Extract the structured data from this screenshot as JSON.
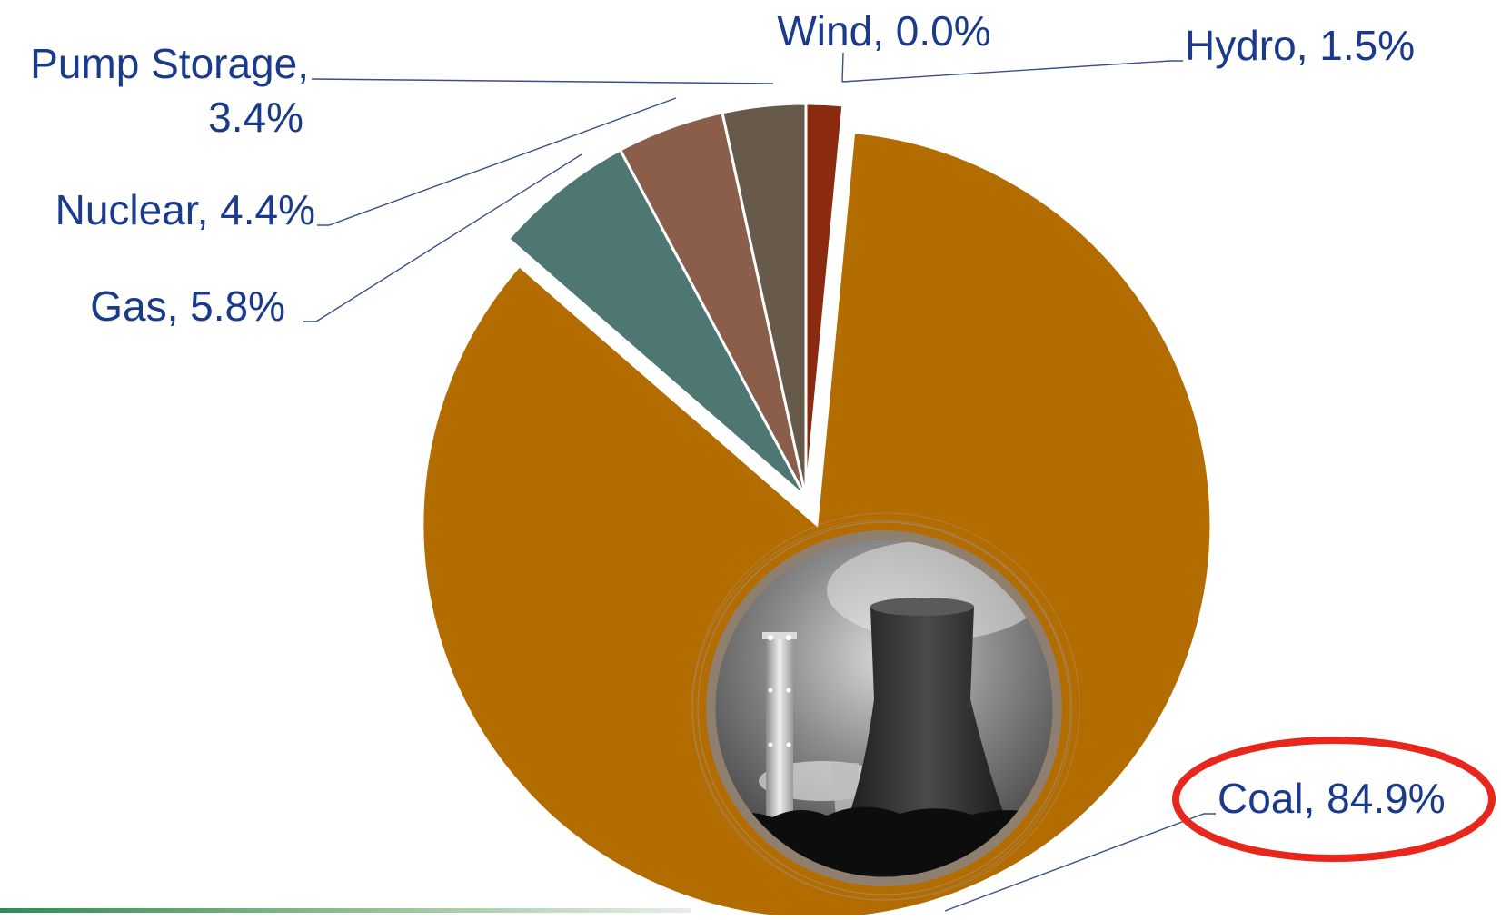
{
  "chart_data": {
    "type": "pie",
    "slices": [
      {
        "name": "Hydro",
        "value": 1.5,
        "label": "Hydro, 1.5%",
        "color": "#8a2a10"
      },
      {
        "name": "Coal",
        "value": 84.9,
        "label": "Coal, 84.9%",
        "color": "#b36c00"
      },
      {
        "name": "Gas",
        "value": 5.8,
        "label": "Gas, 5.8%",
        "color": "#4e7773"
      },
      {
        "name": "Nuclear",
        "value": 4.4,
        "label": "Nuclear, 4.4%",
        "color": "#8b5e4b"
      },
      {
        "name": "Pump Storage",
        "value": 3.4,
        "label_lines": [
          "Pump Storage,",
          "3.4%"
        ],
        "color": "#675a4b"
      },
      {
        "name": "Wind",
        "value": 0.0,
        "label": "Wind, 0.0%",
        "color": "#4a5a6a"
      }
    ],
    "exploded_slice": "Coal",
    "highlighted_label": "Coal",
    "highlight_color": "#e8261b",
    "label_color": "#1a3a8c",
    "inset_image": "cooling-tower-photo"
  }
}
